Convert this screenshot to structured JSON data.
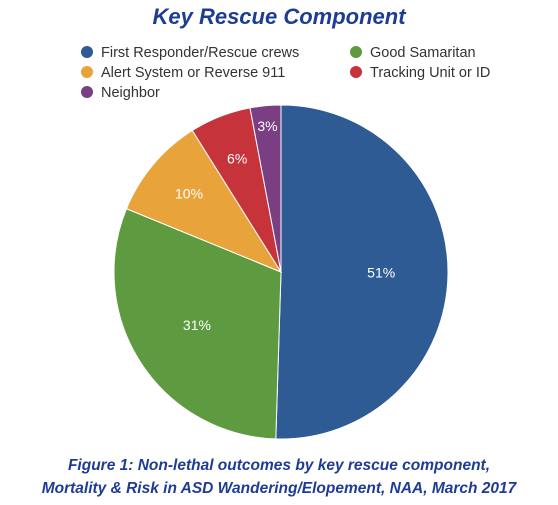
{
  "chart_data": {
    "type": "pie",
    "title": "Key Rescue Component",
    "series": [
      {
        "name": "First Responder/Rescue crews",
        "color": "#2e5b94",
        "values": [
          51
        ],
        "value_labels": [
          "51%"
        ]
      },
      {
        "name": "Good Samaritan",
        "color": "#5e9a3f",
        "values": [
          31
        ],
        "value_labels": [
          "31%"
        ]
      },
      {
        "name": "Alert System or Reverse 911",
        "color": "#e8a33b",
        "values": [
          10
        ],
        "value_labels": [
          "10%"
        ]
      },
      {
        "name": "Tracking Unit or ID",
        "color": "#c7333a",
        "values": [
          6
        ],
        "value_labels": [
          "6%"
        ]
      },
      {
        "name": "Neighbor",
        "color": "#7a3e82",
        "values": [
          3
        ],
        "value_labels": [
          "3%"
        ]
      }
    ],
    "caption": [
      "Figure 1: Non-lethal outcomes by key rescue component,",
      "Mortality & Risk in ASD Wandering/Elopement, NAA, March 2017"
    ]
  }
}
